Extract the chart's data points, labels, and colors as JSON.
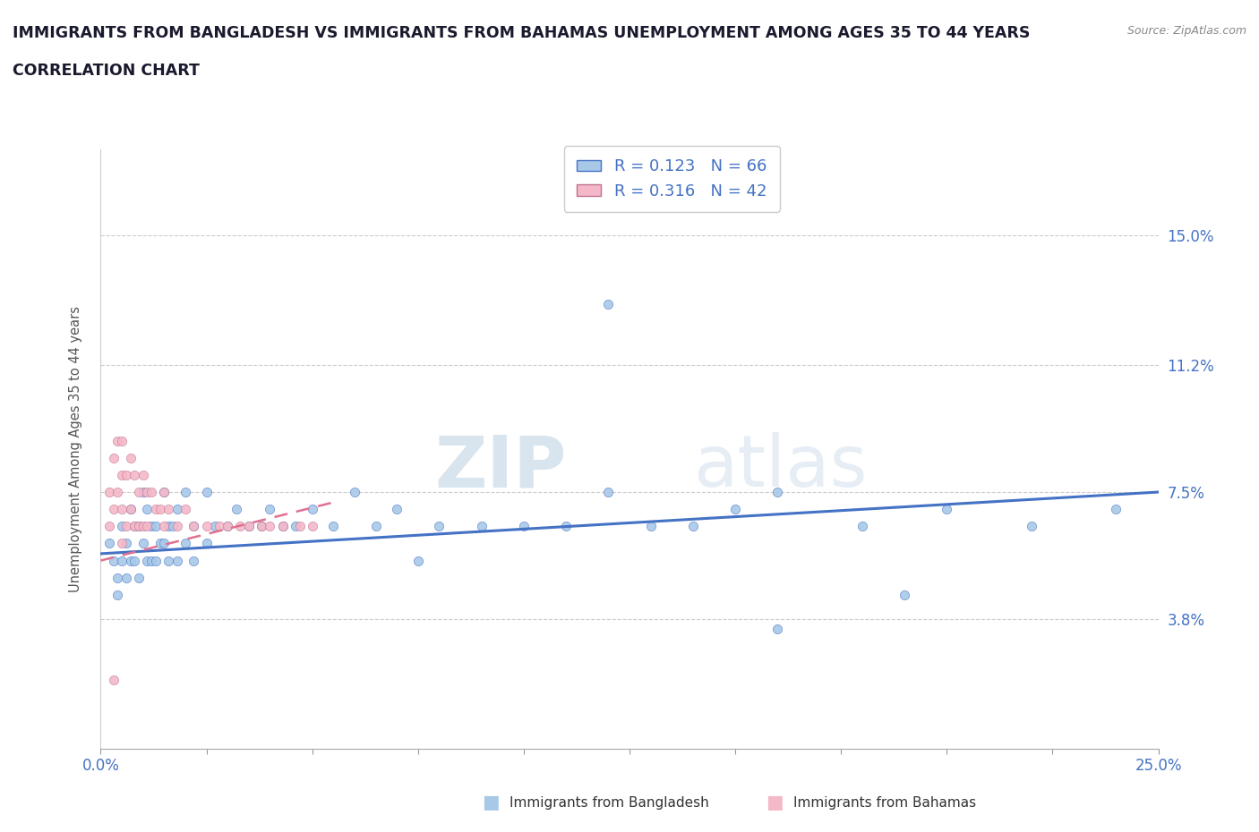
{
  "title_line1": "IMMIGRANTS FROM BANGLADESH VS IMMIGRANTS FROM BAHAMAS UNEMPLOYMENT AMONG AGES 35 TO 44 YEARS",
  "title_line2": "CORRELATION CHART",
  "source_text": "Source: ZipAtlas.com",
  "ylabel": "Unemployment Among Ages 35 to 44 years",
  "xlim": [
    0.0,
    0.25
  ],
  "ylim": [
    0.0,
    0.175
  ],
  "ytick_vals": [
    0.0,
    0.038,
    0.075,
    0.112,
    0.15
  ],
  "ytick_labels": [
    "",
    "3.8%",
    "7.5%",
    "11.2%",
    "15.0%"
  ],
  "xtick_vals": [
    0.0,
    0.025,
    0.05,
    0.075,
    0.1,
    0.125,
    0.15,
    0.175,
    0.2,
    0.225,
    0.25
  ],
  "xtick_labels": [
    "0.0%",
    "",
    "",
    "",
    "",
    "",
    "",
    "",
    "",
    "",
    "25.0%"
  ],
  "watermark_zip": "ZIP",
  "watermark_atlas": "atlas",
  "color_bangladesh": "#a8c8e8",
  "color_bahamas": "#f4b8c8",
  "color_trend_bangladesh": "#4472c4",
  "color_trend_bahamas": "#e07090",
  "color_axis_labels": "#4472c4",
  "bangladesh_x": [
    0.002,
    0.003,
    0.004,
    0.004,
    0.005,
    0.005,
    0.006,
    0.006,
    0.007,
    0.007,
    0.008,
    0.008,
    0.009,
    0.009,
    0.01,
    0.01,
    0.011,
    0.011,
    0.012,
    0.012,
    0.013,
    0.013,
    0.014,
    0.015,
    0.015,
    0.016,
    0.016,
    0.017,
    0.018,
    0.018,
    0.02,
    0.02,
    0.022,
    0.022,
    0.025,
    0.025,
    0.027,
    0.03,
    0.032,
    0.035,
    0.038,
    0.04,
    0.043,
    0.046,
    0.05,
    0.055,
    0.06,
    0.065,
    0.07,
    0.075,
    0.08,
    0.09,
    0.1,
    0.11,
    0.12,
    0.13,
    0.14,
    0.15,
    0.16,
    0.18,
    0.2,
    0.22,
    0.24,
    0.19,
    0.16,
    0.12
  ],
  "bangladesh_y": [
    0.06,
    0.055,
    0.05,
    0.045,
    0.065,
    0.055,
    0.06,
    0.05,
    0.07,
    0.055,
    0.065,
    0.055,
    0.065,
    0.05,
    0.075,
    0.06,
    0.07,
    0.055,
    0.065,
    0.055,
    0.065,
    0.055,
    0.06,
    0.075,
    0.06,
    0.065,
    0.055,
    0.065,
    0.07,
    0.055,
    0.075,
    0.06,
    0.065,
    0.055,
    0.075,
    0.06,
    0.065,
    0.065,
    0.07,
    0.065,
    0.065,
    0.07,
    0.065,
    0.065,
    0.07,
    0.065,
    0.075,
    0.065,
    0.07,
    0.055,
    0.065,
    0.065,
    0.065,
    0.065,
    0.075,
    0.065,
    0.065,
    0.07,
    0.075,
    0.065,
    0.07,
    0.065,
    0.07,
    0.045,
    0.035,
    0.13
  ],
  "bahamas_x": [
    0.002,
    0.002,
    0.003,
    0.003,
    0.004,
    0.004,
    0.005,
    0.005,
    0.005,
    0.005,
    0.006,
    0.006,
    0.007,
    0.007,
    0.008,
    0.008,
    0.009,
    0.009,
    0.01,
    0.01,
    0.011,
    0.011,
    0.012,
    0.013,
    0.014,
    0.015,
    0.015,
    0.016,
    0.018,
    0.02,
    0.022,
    0.025,
    0.028,
    0.03,
    0.033,
    0.035,
    0.038,
    0.04,
    0.043,
    0.047,
    0.05,
    0.003
  ],
  "bahamas_y": [
    0.075,
    0.065,
    0.085,
    0.07,
    0.09,
    0.075,
    0.09,
    0.08,
    0.07,
    0.06,
    0.08,
    0.065,
    0.085,
    0.07,
    0.08,
    0.065,
    0.075,
    0.065,
    0.08,
    0.065,
    0.075,
    0.065,
    0.075,
    0.07,
    0.07,
    0.075,
    0.065,
    0.07,
    0.065,
    0.07,
    0.065,
    0.065,
    0.065,
    0.065,
    0.065,
    0.065,
    0.065,
    0.065,
    0.065,
    0.065,
    0.065,
    0.02
  ],
  "trend_bangladesh_x0": 0.0,
  "trend_bangladesh_x1": 0.25,
  "trend_bangladesh_y0": 0.057,
  "trend_bangladesh_y1": 0.075,
  "trend_bahamas_x0": 0.0,
  "trend_bahamas_x1": 0.055,
  "trend_bahamas_y0": 0.055,
  "trend_bahamas_y1": 0.072
}
